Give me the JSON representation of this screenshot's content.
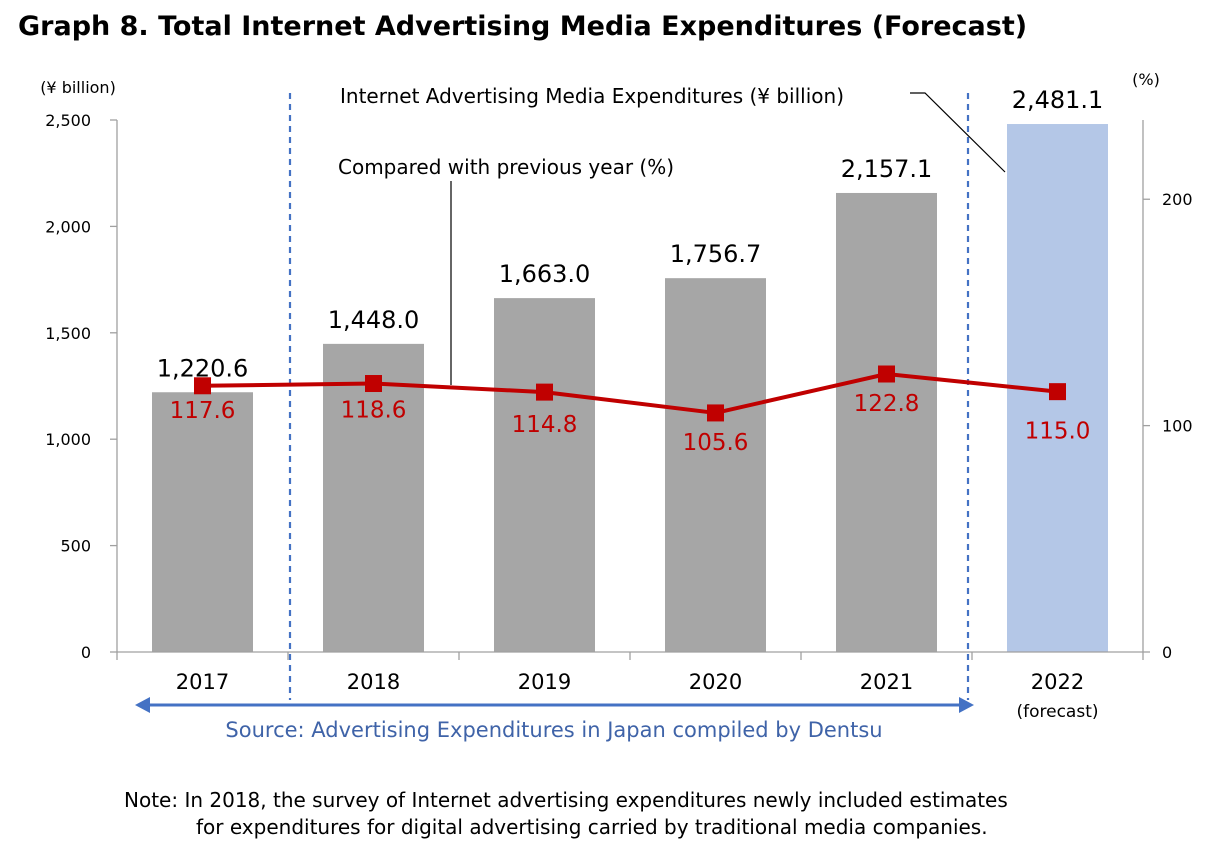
{
  "chart_data": {
    "type": "bar",
    "title": "Graph 8. Total Internet Advertising Media Expenditures (Forecast)",
    "categories": [
      "2017",
      "2018",
      "2019",
      "2020",
      "2021",
      "2022"
    ],
    "category_sublabels": [
      "",
      "",
      "",
      "",
      "",
      "(forecast)"
    ],
    "series": [
      {
        "name": "Internet Advertising Media Expenditures (¥ billion)",
        "axis": "left",
        "values": [
          1220.6,
          1448.0,
          1663.0,
          1756.7,
          2157.1,
          2481.1
        ],
        "value_labels": [
          "1,220.6",
          "1,448.0",
          "1,663.0",
          "1,756.7",
          "2,157.1",
          "2,481.1"
        ],
        "colors": [
          "#a6a6a6",
          "#a6a6a6",
          "#a6a6a6",
          "#a6a6a6",
          "#a6a6a6",
          "#b4c7e7"
        ]
      },
      {
        "name": "Compared with previous year (%)",
        "axis": "right",
        "type": "line",
        "values": [
          117.6,
          118.6,
          114.8,
          105.6,
          122.8,
          115.0
        ],
        "value_labels": [
          "117.6",
          "118.6",
          "114.8",
          "105.6",
          "122.8",
          "115.0"
        ],
        "color": "#c00000"
      }
    ],
    "y_left": {
      "label": "(¥ billion)",
      "ylim": [
        0,
        2500
      ],
      "ticks": [
        0,
        500,
        1000,
        1500,
        2000,
        2500
      ],
      "tick_labels": [
        "0",
        "500",
        "1,000",
        "1,500",
        "2,000",
        "2,500"
      ]
    },
    "y_right": {
      "label": "(%)",
      "ylim": [
        0,
        235
      ],
      "ticks": [
        0,
        100,
        200
      ],
      "tick_labels": [
        "0",
        "100",
        "200"
      ]
    },
    "annotations": {
      "bar_series_callout": "Internet Advertising Media Expenditures (¥ billion)",
      "line_series_callout": "Compared with previous year (%)"
    },
    "source_text": "Source: Advertising Expenditures in Japan compiled by Dentsu",
    "source_range": [
      "2017",
      "2021"
    ],
    "source_color": "#4472c4",
    "note_lines": [
      "Note: In 2018, the survey of Internet advertising expenditures newly included estimates",
      "for expenditures for digital advertising carried by traditional media companies."
    ],
    "grid": false
  }
}
